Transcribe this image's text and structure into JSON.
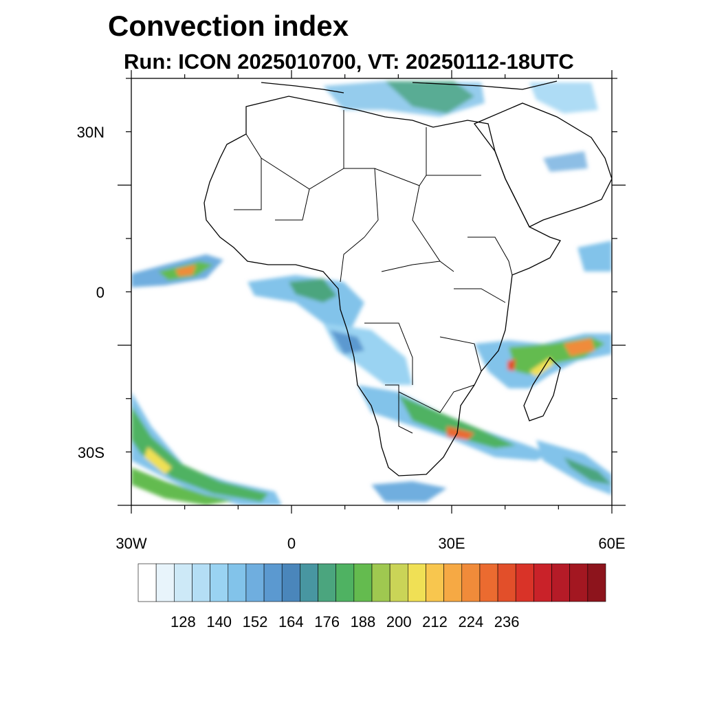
{
  "title": "Convection index",
  "subtitle": "Run: ICON 2025010700,  VT: 20250112-18UTC",
  "map": {
    "lon_range": [
      -30,
      60
    ],
    "lat_range": [
      -40,
      40
    ],
    "lat_ticks": [
      {
        "value": 30,
        "label": "30N"
      },
      {
        "value": 0,
        "label": "0"
      },
      {
        "value": -30,
        "label": "-30S"
      }
    ],
    "lon_ticks": [
      {
        "value": -30,
        "label": "30W"
      },
      {
        "value": 0,
        "label": "0"
      },
      {
        "value": 30,
        "label": "30E"
      },
      {
        "value": 60,
        "label": "60E"
      }
    ]
  },
  "colorbar": {
    "colors": [
      "#ffffff",
      "#e8f4fb",
      "#cde9f7",
      "#b4def5",
      "#9ad3f2",
      "#82c3ea",
      "#6faedf",
      "#5b99d0",
      "#4a86bb",
      "#4896a1",
      "#4ba57e",
      "#4fb262",
      "#64bb4f",
      "#9fc850",
      "#cad457",
      "#f0e055",
      "#f8c64e",
      "#f6a944",
      "#f08b3a",
      "#eb6b30",
      "#e24f2a",
      "#d93328",
      "#c92229",
      "#b51b27",
      "#a31721",
      "#8d141c"
    ],
    "labels": [
      "128",
      "140",
      "152",
      "164",
      "176",
      "188",
      "200",
      "212",
      "224",
      "236"
    ],
    "label_boundary_index": [
      2,
      4,
      6,
      8,
      10,
      12,
      14,
      16,
      18,
      20
    ]
  }
}
